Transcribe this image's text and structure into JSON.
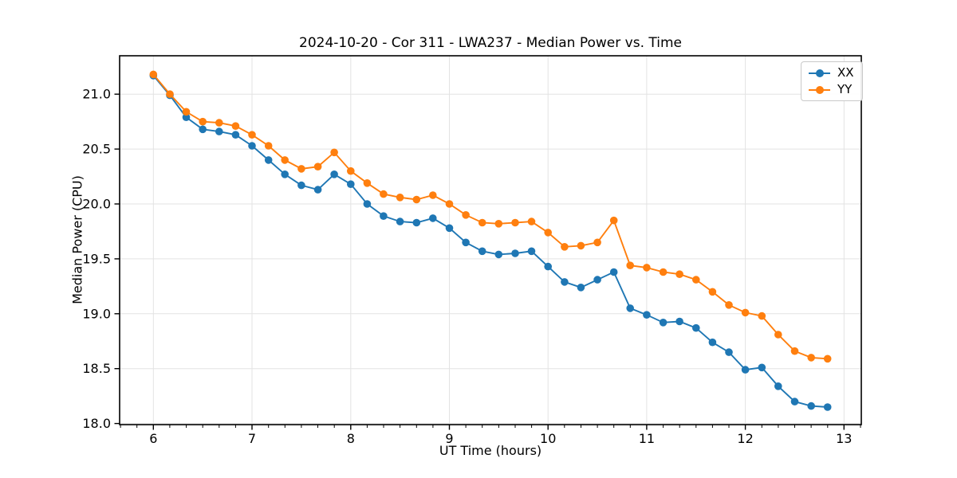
{
  "chart_data": {
    "type": "line",
    "title": "2024-10-20 - Cor 311 - LWA237 - Median Power vs. Time",
    "xlabel": "UT Time (hours)",
    "ylabel": "Median Power (CPU)",
    "xlim": [
      5.658,
      13.175
    ],
    "ylim": [
      17.99,
      21.35
    ],
    "xticks": [
      6,
      7,
      8,
      9,
      10,
      11,
      12,
      13
    ],
    "yticks": [
      18.0,
      18.5,
      19.0,
      19.5,
      20.0,
      20.5,
      21.0
    ],
    "x_minor_tick_step": 0.16667,
    "grid": true,
    "grid_color": "#e3e3e3",
    "legend_position": "upper right",
    "x": [
      6.0,
      6.167,
      6.333,
      6.5,
      6.667,
      6.833,
      7.0,
      7.167,
      7.333,
      7.5,
      7.667,
      7.833,
      8.0,
      8.167,
      8.333,
      8.5,
      8.667,
      8.833,
      9.0,
      9.167,
      9.333,
      9.5,
      9.667,
      9.833,
      10.0,
      10.167,
      10.333,
      10.5,
      10.667,
      10.833,
      11.0,
      11.167,
      11.333,
      11.5,
      11.667,
      11.833,
      12.0,
      12.167,
      12.333,
      12.5,
      12.667,
      12.833
    ],
    "series": [
      {
        "name": "XX",
        "color": "#1f77b4",
        "values": [
          21.17,
          20.99,
          20.79,
          20.68,
          20.66,
          20.63,
          20.53,
          20.4,
          20.27,
          20.17,
          20.13,
          20.27,
          20.18,
          20.0,
          19.89,
          19.84,
          19.83,
          19.87,
          19.78,
          19.65,
          19.57,
          19.54,
          19.55,
          19.57,
          19.43,
          19.29,
          19.24,
          19.31,
          19.38,
          19.05,
          18.99,
          18.92,
          18.93,
          18.87,
          18.74,
          18.65,
          18.49,
          18.51,
          18.34,
          18.2,
          18.16,
          18.15
        ]
      },
      {
        "name": "YY",
        "color": "#ff7f0e",
        "values": [
          21.18,
          21.0,
          20.84,
          20.75,
          20.74,
          20.71,
          20.63,
          20.53,
          20.4,
          20.32,
          20.34,
          20.47,
          20.3,
          20.19,
          20.09,
          20.06,
          20.04,
          20.08,
          20.0,
          19.9,
          19.83,
          19.82,
          19.83,
          19.84,
          19.74,
          19.61,
          19.62,
          19.65,
          19.85,
          19.44,
          19.42,
          19.38,
          19.36,
          19.31,
          19.2,
          19.08,
          19.01,
          18.98,
          18.81,
          18.66,
          18.6,
          18.59
        ]
      }
    ]
  }
}
